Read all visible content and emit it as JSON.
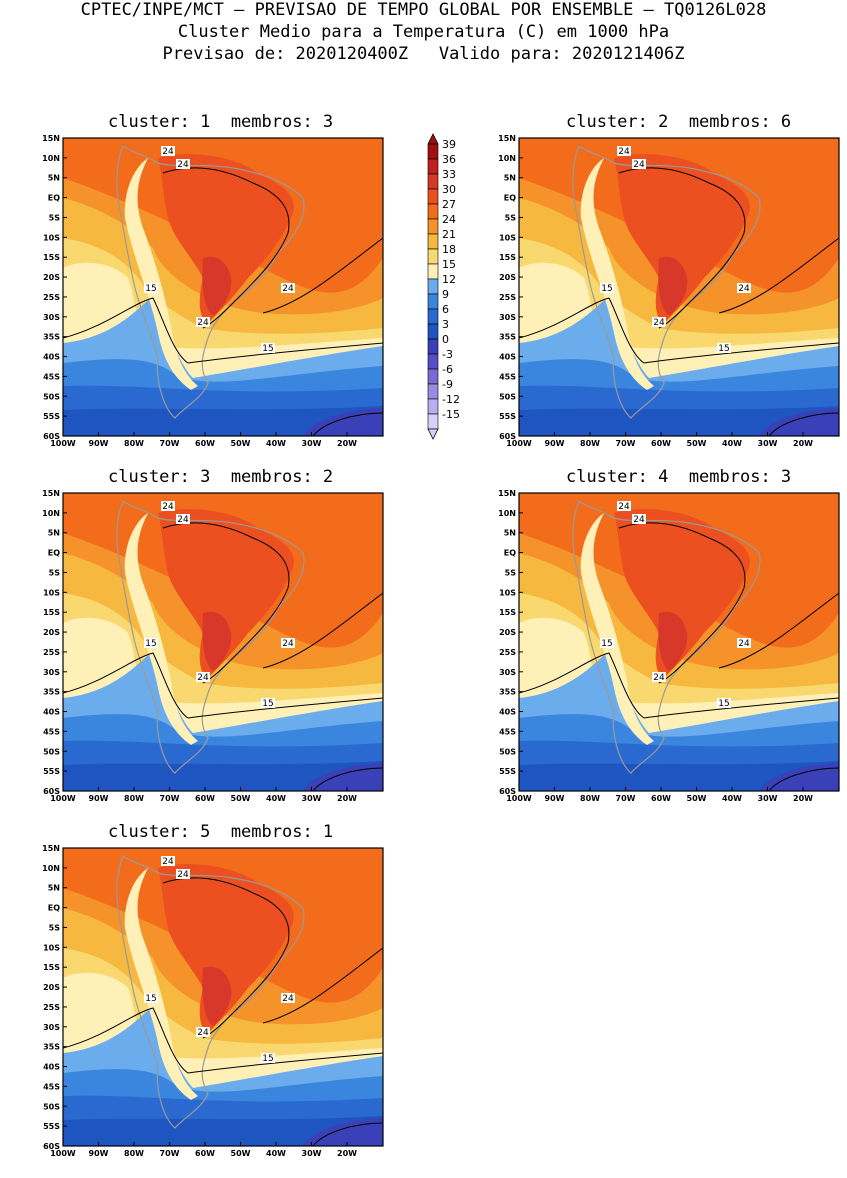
{
  "header": {
    "line1": "CPTEC/INPE/MCT — PREVISAO DE TEMPO GLOBAL POR ENSEMBLE — TQ0126L028",
    "line2": "Cluster Medio para a Temperatura (C) em 1000 hPa",
    "line3": "Previsao de: 2020120400Z   Valido para: 2020121406Z"
  },
  "axes": {
    "lat": [
      "15N",
      "10N",
      "5N",
      "EQ",
      "5S",
      "10S",
      "15S",
      "20S",
      "25S",
      "30S",
      "35S",
      "40S",
      "45S",
      "50S",
      "55S",
      "60S"
    ],
    "lon": [
      "100W",
      "90W",
      "80W",
      "70W",
      "60W",
      "50W",
      "40W",
      "30W",
      "20W"
    ]
  },
  "legend": {
    "labels": [
      "39",
      "36",
      "33",
      "30",
      "27",
      "24",
      "21",
      "18",
      "15",
      "12",
      "9",
      "6",
      "3",
      "0",
      "-3",
      "-6",
      "-9",
      "-12",
      "-15"
    ],
    "colors": [
      "#a01010",
      "#c02020",
      "#d8382a",
      "#ec5020",
      "#f26c1c",
      "#f5922a",
      "#f7b840",
      "#fad870",
      "#fff0b8",
      "#6aacec",
      "#3a86de",
      "#2a6ad0",
      "#1f55c0",
      "#3a40b8",
      "#5a4ec8",
      "#7a6ad6",
      "#9a8ae2",
      "#baaeee",
      "#d8d0f8"
    ]
  },
  "panels": [
    {
      "title": "cluster: 1  membros: 3",
      "label_a": "24",
      "label_b": "24",
      "label_c": "24",
      "label_d": "24",
      "label_e": "15",
      "label_f": "15"
    },
    {
      "title": "cluster: 2  membros: 6",
      "label_a": "24",
      "label_b": "24",
      "label_c": "24",
      "label_d": "24",
      "label_e": "15",
      "label_f": "15"
    },
    {
      "title": "cluster: 3  membros: 2",
      "label_a": "24",
      "label_b": "24",
      "label_c": "24",
      "label_d": "24",
      "label_e": "15",
      "label_f": "15"
    },
    {
      "title": "cluster: 4  membros: 3",
      "label_a": "24",
      "label_b": "24",
      "label_c": "24",
      "label_d": "24",
      "label_e": "15",
      "label_f": "15"
    },
    {
      "title": "cluster: 5  membros: 1",
      "label_a": "24",
      "label_b": "24",
      "label_c": "24",
      "label_d": "24",
      "label_e": "15",
      "label_f": "15"
    }
  ]
}
